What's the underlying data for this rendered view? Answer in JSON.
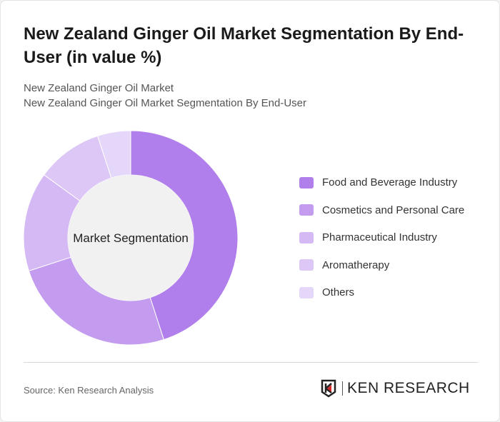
{
  "title": "New Zealand Ginger Oil Market Segmentation By End-User (in value %)",
  "subtitle_1": "New Zealand Ginger Oil Market",
  "subtitle_2": "New Zealand Ginger Oil Market Segmentation By End-User",
  "source": "Source: Ken Research Analysis",
  "logo_text": "KEN RESEARCH",
  "chart_data": {
    "type": "pie",
    "variant": "donut",
    "center_label": "Market Segmentation",
    "categories": [
      "Food and Beverage Industry",
      "Cosmetics and Personal Care",
      "Pharmaceutical Industry",
      "Aromatherapy",
      "Others"
    ],
    "values": [
      45,
      25,
      15,
      10,
      5
    ],
    "colors": [
      "#b17fec",
      "#c39cf0",
      "#d5b9f5",
      "#dcc7f6",
      "#e5d7f9"
    ],
    "legend_position": "right"
  }
}
